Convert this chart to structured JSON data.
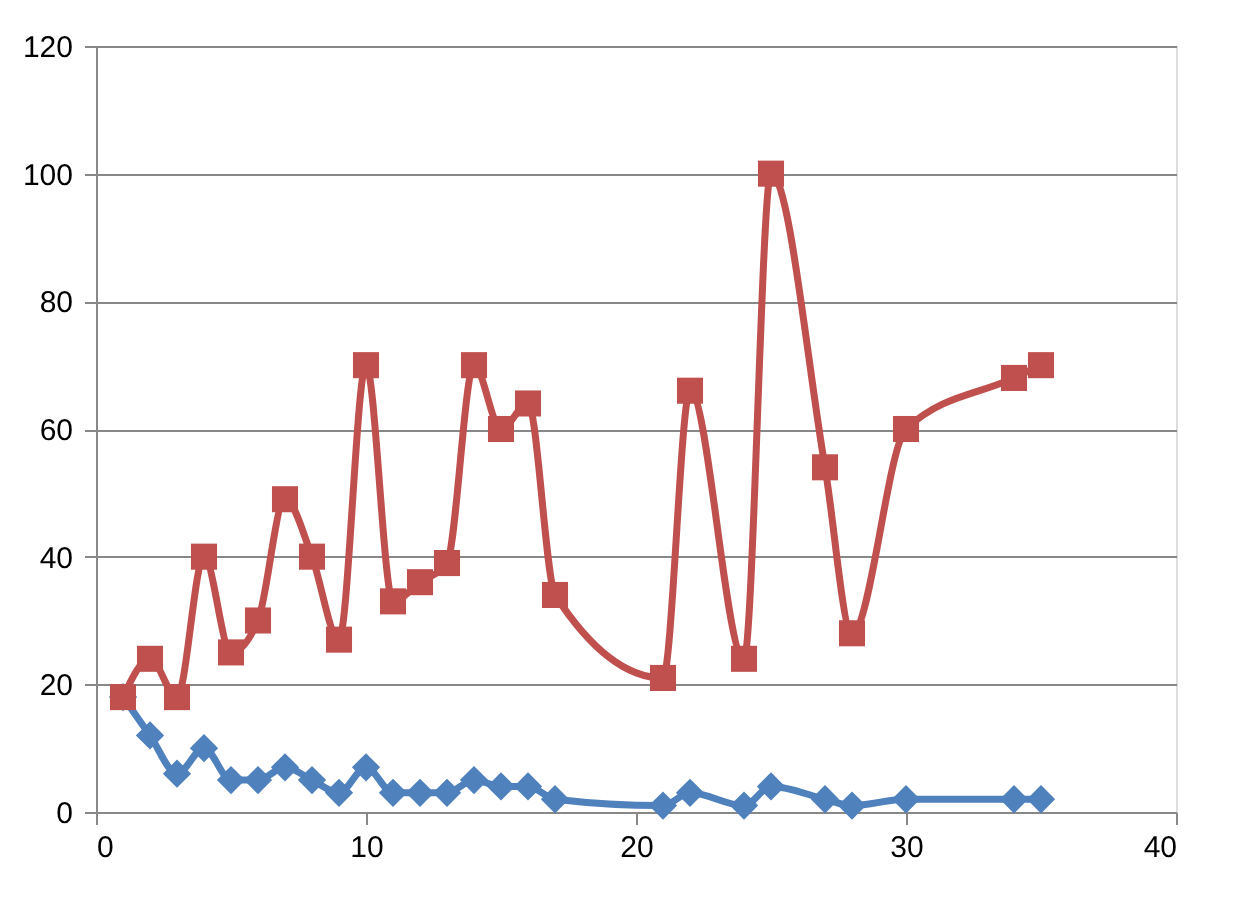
{
  "chart_data": {
    "type": "line",
    "xlim": [
      0,
      40
    ],
    "xticks": [
      0,
      10,
      20,
      30,
      40
    ],
    "ylim": [
      0,
      120
    ],
    "yticks": [
      0,
      20,
      40,
      60,
      80,
      100,
      120
    ],
    "grid": "y",
    "line_style": "solid",
    "series": [
      {
        "color": "#4f81bd",
        "marker": "diamond",
        "x": [
          1,
          2,
          3,
          4,
          5,
          6,
          7,
          8,
          9,
          10,
          11,
          12,
          13,
          14,
          15,
          16,
          17,
          21,
          22,
          24,
          25,
          27,
          28,
          30,
          34,
          35
        ],
        "values": [
          18,
          12,
          6,
          10,
          5,
          5,
          7,
          5,
          3,
          7,
          3,
          3,
          3,
          5,
          4,
          4,
          2,
          1,
          3,
          1,
          4,
          2,
          1,
          2,
          2,
          2
        ]
      },
      {
        "color": "#c0504d",
        "marker": "square",
        "x": [
          1,
          2,
          3,
          4,
          5,
          6,
          7,
          8,
          9,
          10,
          11,
          12,
          13,
          14,
          15,
          16,
          17,
          21,
          22,
          24,
          25,
          27,
          28,
          30,
          34,
          35
        ],
        "values": [
          18,
          24,
          18,
          40,
          25,
          30,
          49,
          40,
          27,
          70,
          33,
          36,
          39,
          70,
          60,
          64,
          34,
          21,
          66,
          24,
          100,
          54,
          28,
          60,
          68,
          70
        ]
      }
    ]
  }
}
